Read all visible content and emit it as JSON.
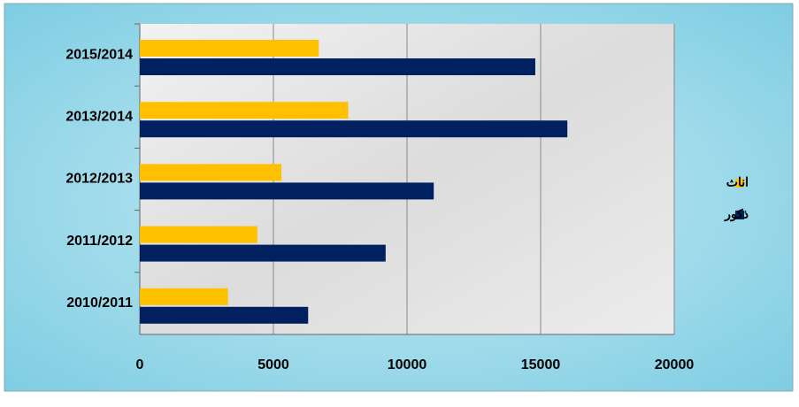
{
  "chart_data": {
    "type": "bar",
    "orientation": "horizontal",
    "categories": [
      "2010/2011",
      "2011/2012",
      "2012/2013",
      "2013/2014",
      "2015/2014"
    ],
    "series": [
      {
        "name": "اناث",
        "color": "#ffc000",
        "values": [
          3300,
          4400,
          5300,
          7800,
          6700
        ]
      },
      {
        "name": "ذكور",
        "color": "#002060",
        "values": [
          6300,
          9200,
          11000,
          16000,
          14800
        ]
      }
    ],
    "xlim": [
      0,
      20000
    ],
    "xticks": [
      0,
      5000,
      10000,
      15000,
      20000
    ],
    "grid": true,
    "legend": "right"
  }
}
